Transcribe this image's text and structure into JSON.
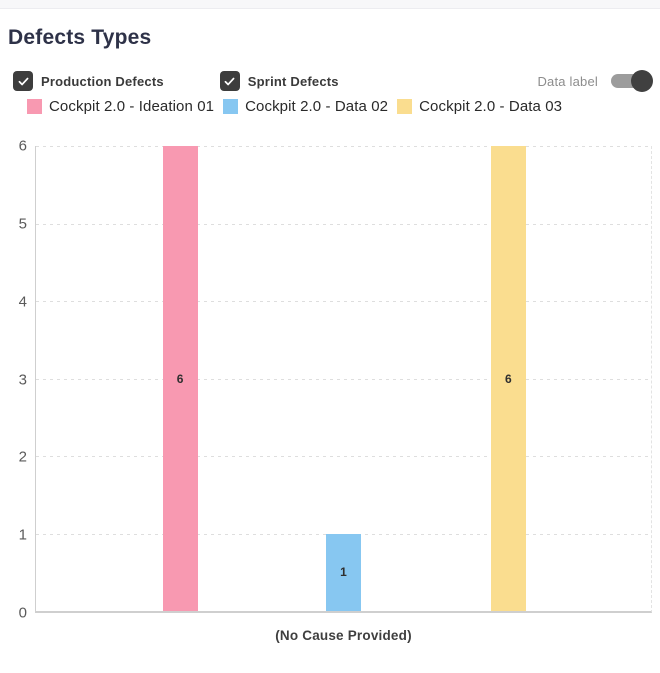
{
  "header": {
    "title": "Defects Types"
  },
  "controls": {
    "checkboxes": [
      {
        "label": "Production Defects",
        "checked": true
      },
      {
        "label": "Sprint Defects",
        "checked": true
      }
    ],
    "toggle": {
      "label": "Data label",
      "on": true
    }
  },
  "colors": {
    "checkbox": "#3d3d3d",
    "toggle_track": "#9c9c9c",
    "toggle_knob": "#404040",
    "title_text": "#2e3248",
    "axis_line": "#cfcfcf",
    "gridline": "#dedede"
  },
  "chart_data": {
    "type": "bar",
    "title": "Defects Types",
    "categories": [
      "(No Cause Provided)"
    ],
    "series": [
      {
        "name": "Cockpit 2.0 - Ideation 01",
        "color": "#F899B1",
        "values": [
          6
        ]
      },
      {
        "name": "Cockpit 2.0 - Data 02",
        "color": "#87C7F1",
        "values": [
          1
        ]
      },
      {
        "name": "Cockpit 2.0 - Data 03",
        "color": "#FADD8F",
        "values": [
          6
        ]
      }
    ],
    "xlabel": "",
    "ylabel": "",
    "ylim": [
      0,
      6
    ],
    "yticks": [
      0,
      1,
      2,
      3,
      4,
      5,
      6
    ],
    "grid": "dashed-horizontal",
    "data_labels_shown": true,
    "legend_position": "top-left"
  }
}
